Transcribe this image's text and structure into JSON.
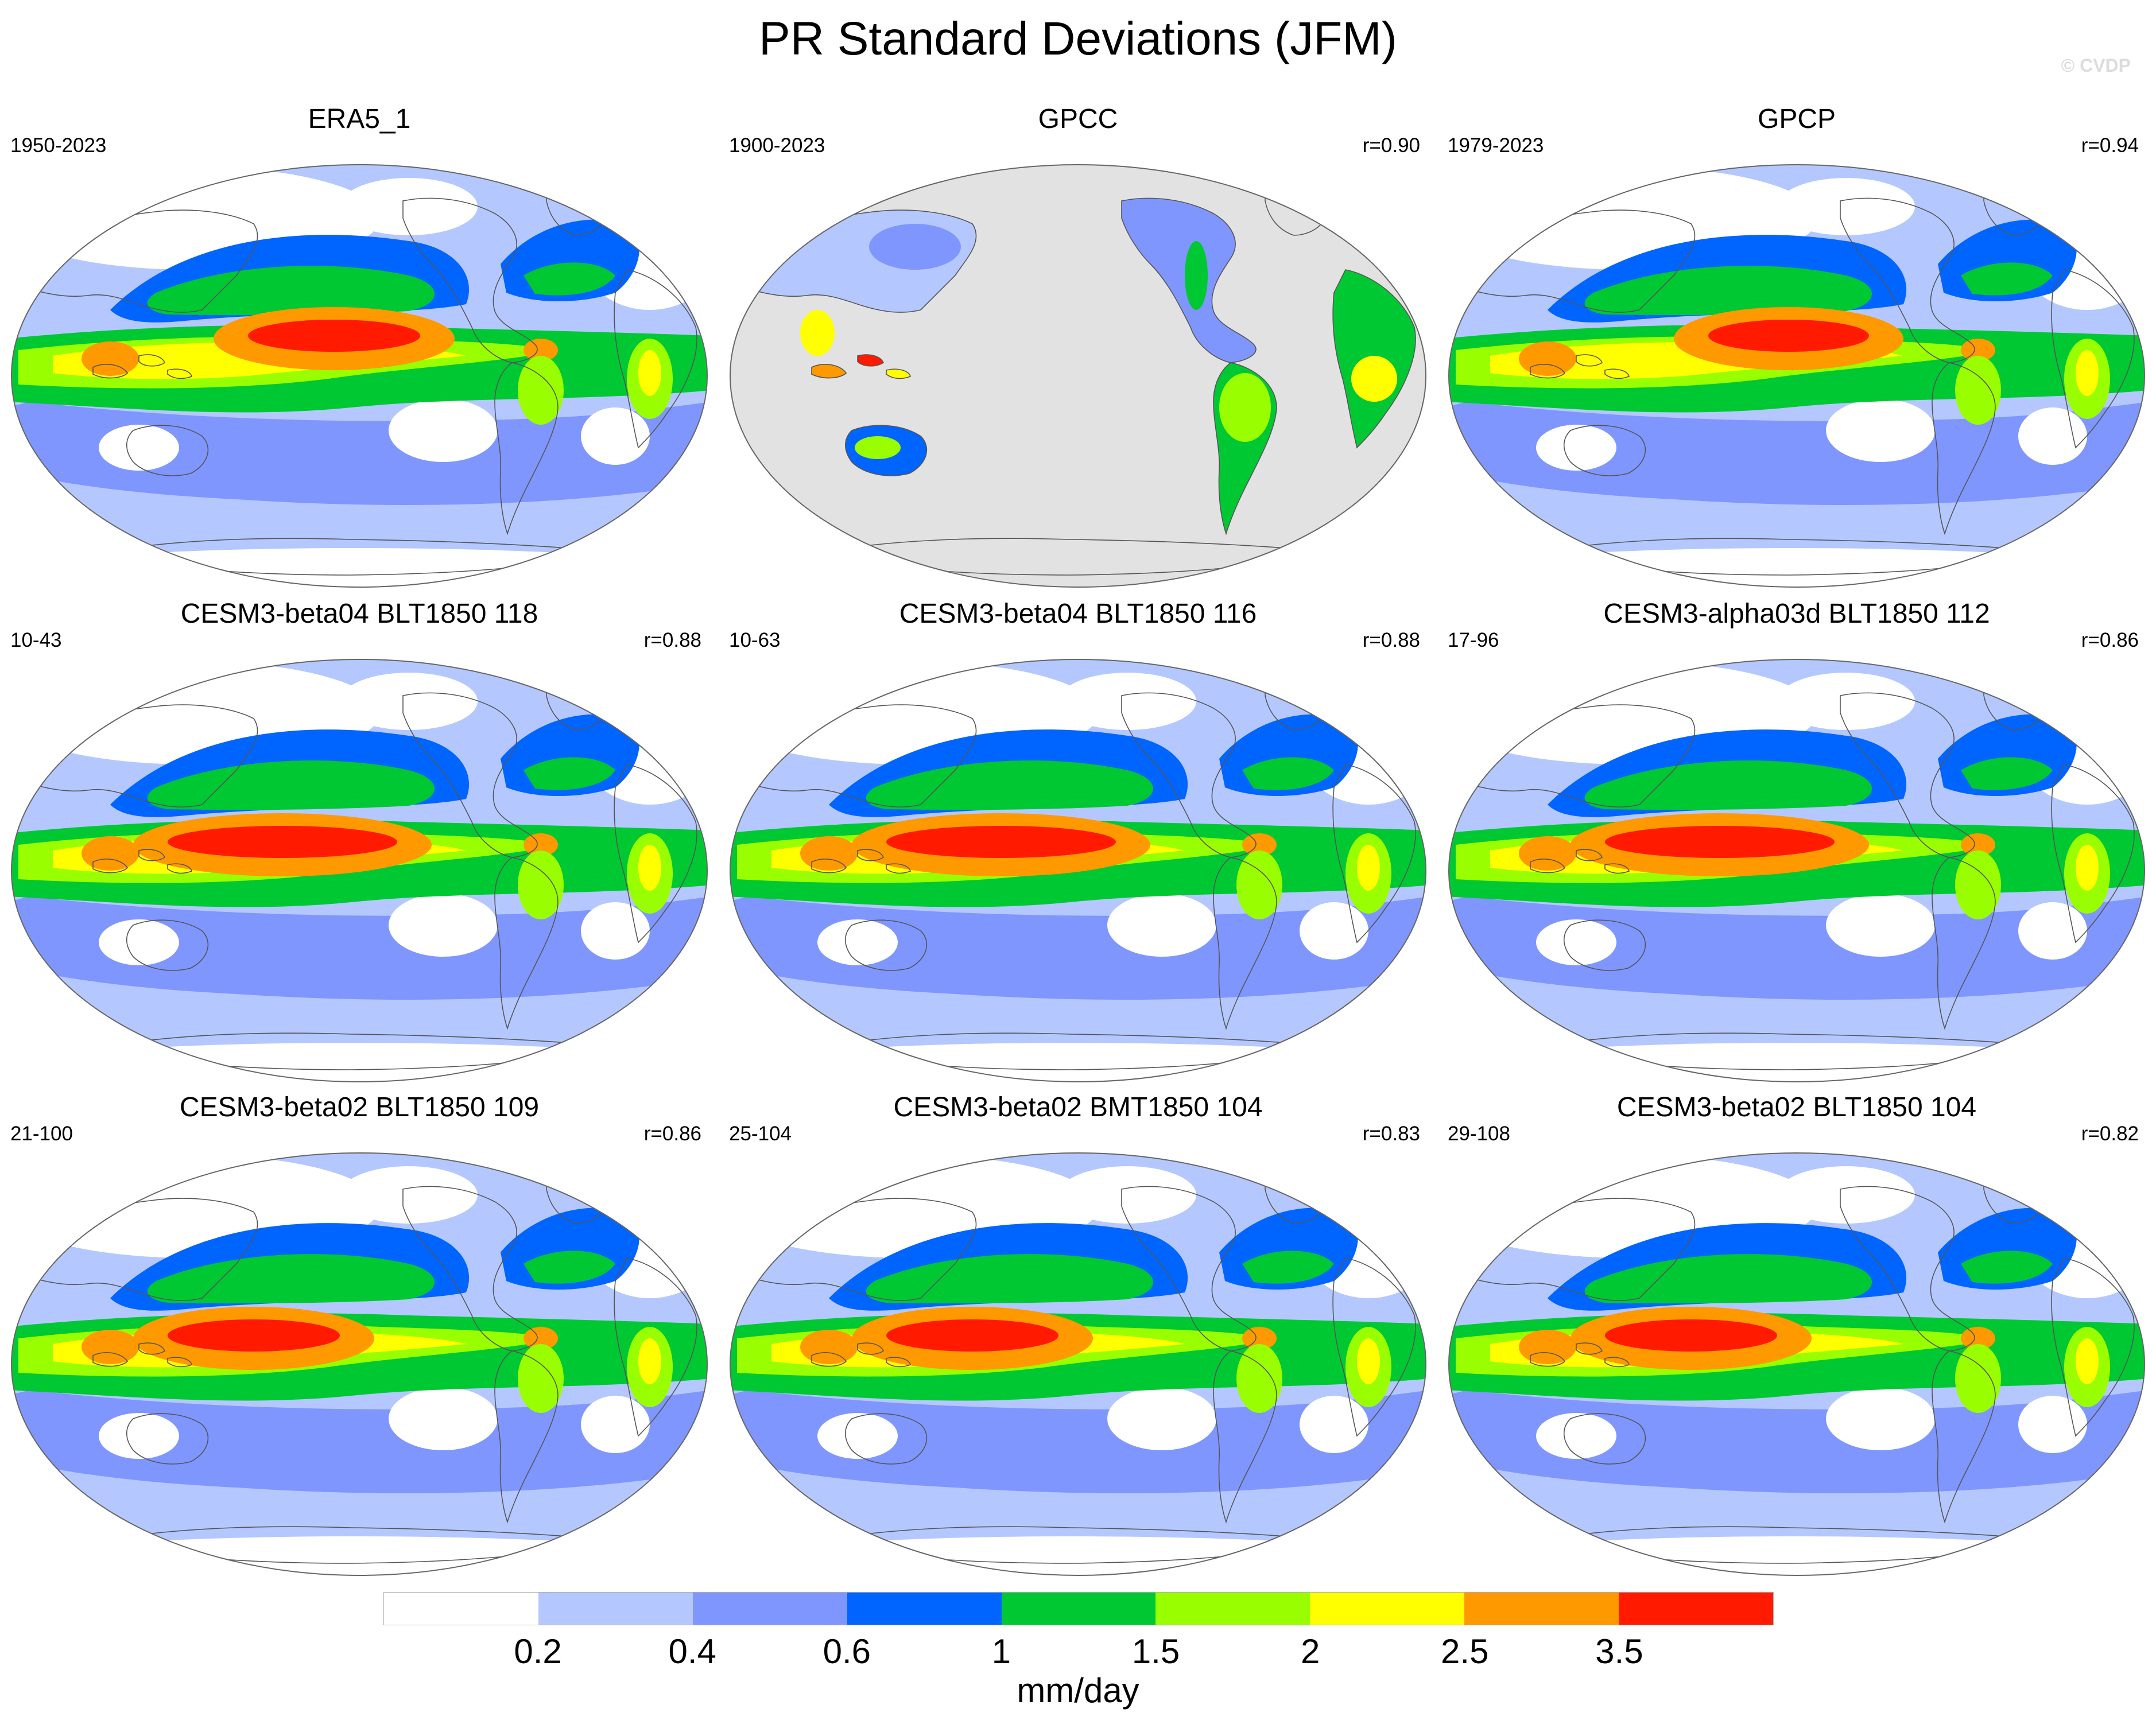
{
  "title": "PR Standard Deviations (JFM)",
  "watermark": "© CVDP",
  "colors": {
    "ocean_missing": "#e2e2e2",
    "coast": "#555555"
  },
  "panels": [
    {
      "title": "ERA5_1",
      "years": "1950-2023",
      "r": "",
      "style": "era5",
      "obs_land_only": false
    },
    {
      "title": "GPCC",
      "years": "1900-2023",
      "r": "r=0.90",
      "style": "gpcc",
      "obs_land_only": true
    },
    {
      "title": "GPCP",
      "years": "1979-2023",
      "r": "r=0.94",
      "style": "gpcp",
      "obs_land_only": false
    },
    {
      "title": "CESM3-beta04 BLT1850 118",
      "years": "10-43",
      "r": "r=0.88",
      "style": "model",
      "obs_land_only": false
    },
    {
      "title": "CESM3-beta04 BLT1850 116",
      "years": "10-63",
      "r": "r=0.88",
      "style": "model",
      "obs_land_only": false
    },
    {
      "title": "CESM3-alpha03d BLT1850 112",
      "years": "17-96",
      "r": "r=0.86",
      "style": "model",
      "obs_land_only": false
    },
    {
      "title": "CESM3-beta02 BLT1850 109",
      "years": "21-100",
      "r": "r=0.86",
      "style": "model2",
      "obs_land_only": false
    },
    {
      "title": "CESM3-beta02 BMT1850 104",
      "years": "25-104",
      "r": "r=0.83",
      "style": "model2",
      "obs_land_only": false
    },
    {
      "title": "CESM3-beta02 BLT1850 104",
      "years": "29-108",
      "r": "r=0.82",
      "style": "model2",
      "obs_land_only": false
    }
  ],
  "colorbar": {
    "units": "mm/day",
    "levels": [
      "0.2",
      "0.4",
      "0.6",
      "1",
      "1.5",
      "2",
      "2.5",
      "3.5"
    ],
    "colors": [
      "#ffffff",
      "#b4c8ff",
      "#7f96ff",
      "#0064ff",
      "#00c832",
      "#99ff00",
      "#ffff00",
      "#ff9900",
      "#ff1a00"
    ]
  }
}
